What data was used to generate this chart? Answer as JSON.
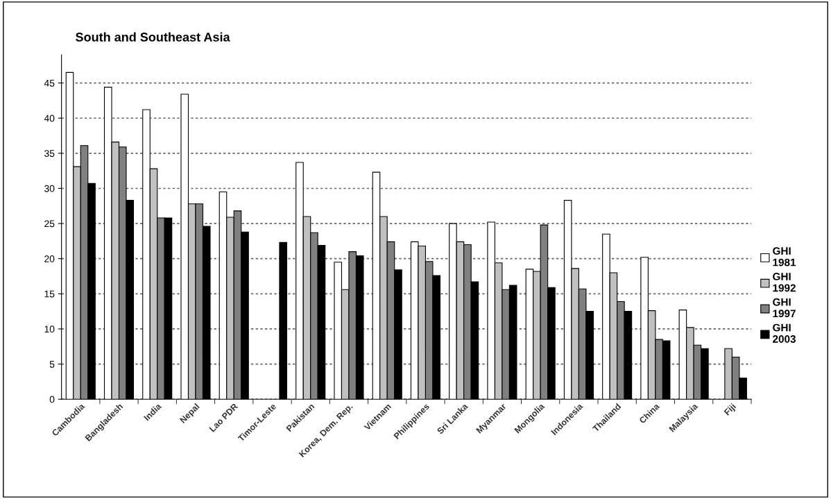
{
  "chart_data": {
    "type": "bar",
    "title": "South and Southeast Asia",
    "categories": [
      "Cambodia",
      "Bangladesh",
      "India",
      "Nepal",
      "Lao PDR",
      "Timor-Leste",
      "Pakistan",
      "Korea, Dem. Rep.",
      "Vietnam",
      "Philippines",
      "Sri Lanka",
      "Myanmar",
      "Mongolia",
      "Indonesia",
      "Thailand",
      "China",
      "Malaysia",
      "Fiji"
    ],
    "series": [
      {
        "name": "GHI 1981",
        "color": "#ffffff",
        "values": [
          46.5,
          44.4,
          41.2,
          43.4,
          29.5,
          null,
          33.7,
          19.5,
          32.3,
          22.4,
          25.0,
          25.2,
          18.5,
          28.3,
          23.5,
          20.2,
          12.7,
          null
        ]
      },
      {
        "name": "GHI 1992",
        "color": "#c0c0c0",
        "values": [
          33.1,
          36.6,
          32.8,
          27.8,
          25.9,
          null,
          26.0,
          15.6,
          26.0,
          21.8,
          22.4,
          19.4,
          18.2,
          18.6,
          18.0,
          12.6,
          10.2,
          7.2
        ]
      },
      {
        "name": "GHI 1997",
        "color": "#808080",
        "values": [
          36.1,
          35.9,
          25.8,
          27.8,
          26.8,
          null,
          23.7,
          21.0,
          22.4,
          19.6,
          22.0,
          15.6,
          24.8,
          15.7,
          13.9,
          8.5,
          7.7,
          6.0
        ]
      },
      {
        "name": "GHI 2003",
        "color": "#000000",
        "values": [
          30.7,
          28.3,
          25.8,
          24.6,
          23.8,
          22.3,
          21.9,
          20.4,
          18.4,
          17.6,
          16.7,
          16.2,
          15.9,
          12.5,
          12.5,
          8.3,
          7.2,
          3.0
        ]
      }
    ],
    "ylim": [
      0,
      49
    ],
    "yticks": [
      0,
      5,
      10,
      15,
      20,
      25,
      30,
      35,
      40,
      45
    ],
    "grid": "y",
    "legend": "right"
  }
}
